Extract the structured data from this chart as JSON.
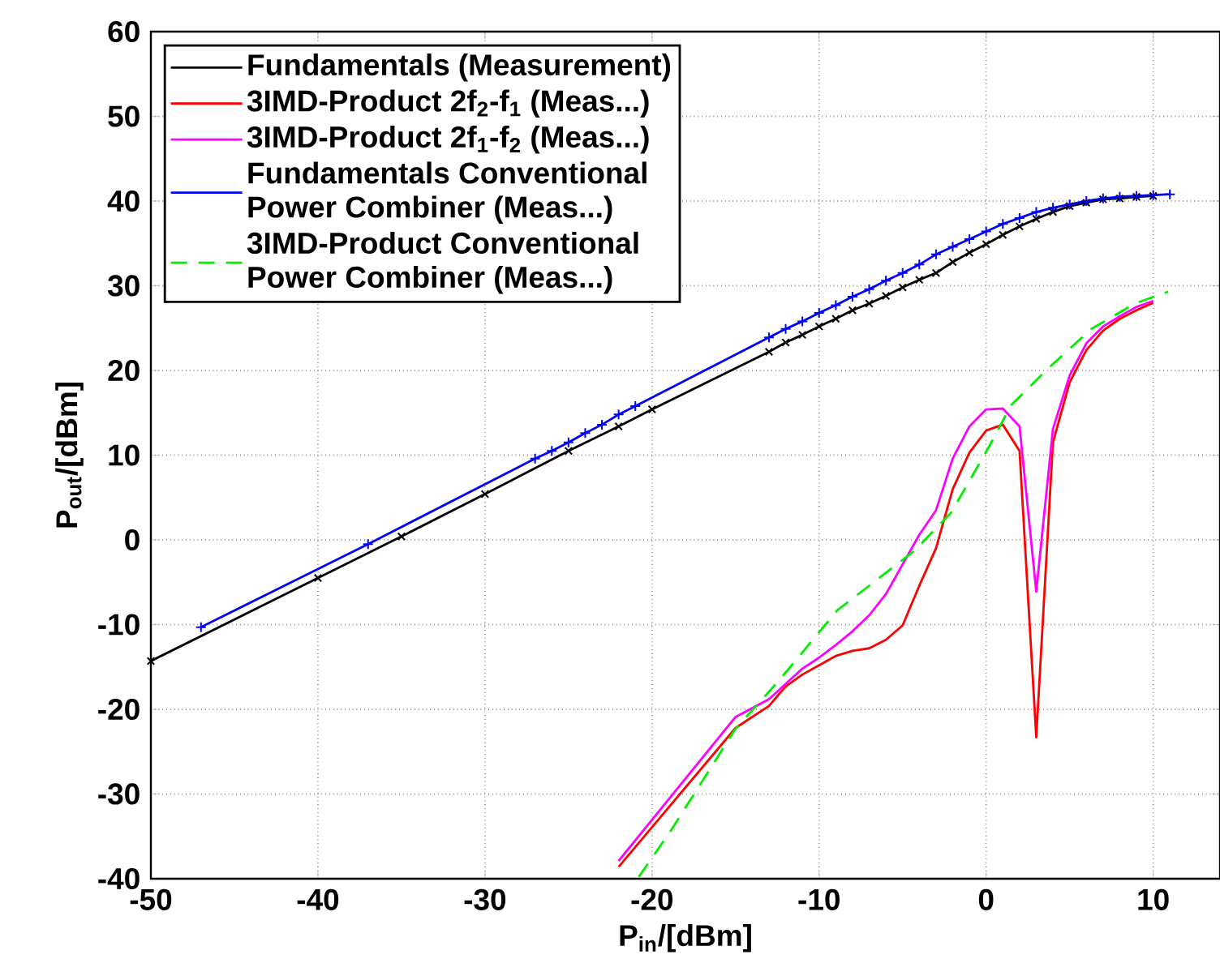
{
  "chart_data": {
    "type": "line",
    "xlabel": "P$_{in}$/[dBm]",
    "ylabel": "P$_{out}$/[dBm]",
    "xlim": [
      -50,
      14
    ],
    "ylim": [
      -40,
      60
    ],
    "xticks": [
      -50,
      -40,
      -30,
      -20,
      -10,
      0,
      10
    ],
    "yticks": [
      -40,
      -30,
      -20,
      -10,
      0,
      10,
      20,
      30,
      40,
      50,
      60
    ],
    "grid": true,
    "legend": "top left",
    "series": [
      {
        "name": "Fundamentals (Measurement)",
        "color": "#000000",
        "marker": "cross",
        "line_style": "solid",
        "x": [
          -50,
          -40,
          -35,
          -30,
          -25,
          -22,
          -20,
          -13,
          -12,
          -11,
          -10,
          -9,
          -8,
          -7,
          -6,
          -5,
          -4,
          -3,
          -2,
          -1,
          0,
          1,
          2,
          3,
          4,
          5,
          6,
          7,
          8,
          9,
          10
        ],
        "values": [
          -14.3,
          -4.5,
          0.4,
          5.4,
          10.5,
          13.4,
          15.4,
          22.2,
          23.3,
          24.2,
          25.2,
          26.1,
          27.1,
          27.9,
          28.8,
          29.8,
          30.7,
          31.5,
          32.8,
          33.9,
          34.9,
          36.0,
          37.0,
          37.9,
          38.7,
          39.4,
          39.8,
          40.2,
          40.3,
          40.5,
          40.6
        ]
      },
      {
        "name": "3IMD-Product 2f$_{2}$-f$_{1}$ (Meas...)",
        "color": "#ff0000",
        "marker": "none",
        "line_style": "solid",
        "x": [
          -22,
          -15,
          -13,
          -12,
          -11,
          -10,
          -9,
          -8,
          -7,
          -6,
          -5,
          -4,
          -3,
          -2,
          -1,
          0,
          1,
          2,
          3,
          4,
          5,
          6,
          7,
          8,
          9,
          10
        ],
        "values": [
          -38.6,
          -22.2,
          -19.6,
          -17.3,
          -15.9,
          -14.8,
          -13.7,
          -13.1,
          -12.8,
          -11.8,
          -10.1,
          -5.4,
          -1.0,
          6.0,
          10.3,
          12.9,
          13.6,
          10.5,
          -23.3,
          11.5,
          18.6,
          22.4,
          24.7,
          26.1,
          27.1,
          28.0
        ]
      },
      {
        "name": "3IMD-Product 2f$_{1}$-f$_{2}$ (Meas...)",
        "color": "#ff00ff",
        "marker": "none",
        "line_style": "solid",
        "x": [
          -22,
          -15,
          -13,
          -11,
          -10,
          -9,
          -8,
          -7,
          -6,
          -5,
          -4,
          -3,
          -2,
          -1,
          0,
          1,
          2,
          3,
          4,
          5,
          6,
          7,
          8,
          9,
          10
        ],
        "values": [
          -37.9,
          -20.9,
          -18.8,
          -15.2,
          -13.9,
          -12.4,
          -10.8,
          -8.9,
          -6.4,
          -2.9,
          0.6,
          3.5,
          9.6,
          13.4,
          15.4,
          15.5,
          13.4,
          -6.1,
          13.1,
          19.4,
          23.2,
          25.2,
          26.4,
          27.5,
          28.2
        ]
      },
      {
        "name": "Fundamentals Conventional Power Combiner (Meas...)",
        "color": "#0000ff",
        "marker": "plus",
        "line_style": "solid",
        "x": [
          -47,
          -37,
          -27,
          -26,
          -25,
          -24,
          -23,
          -22,
          -21,
          -13,
          -12,
          -11,
          -10,
          -9,
          -8,
          -7,
          -6,
          -5,
          -4,
          -3,
          -2,
          -1,
          0,
          1,
          2,
          3,
          4,
          5,
          6,
          7,
          8,
          9,
          10,
          11
        ],
        "values": [
          -10.3,
          -0.5,
          9.6,
          10.5,
          11.5,
          12.6,
          13.6,
          14.8,
          15.8,
          23.9,
          24.9,
          25.8,
          26.8,
          27.7,
          28.7,
          29.6,
          30.6,
          31.5,
          32.5,
          33.7,
          34.6,
          35.5,
          36.4,
          37.3,
          38.0,
          38.7,
          39.2,
          39.6,
          40.0,
          40.3,
          40.5,
          40.6,
          40.7,
          40.8
        ]
      },
      {
        "name": "3IMD-Product Conventional Power Combiner (Meas...)",
        "color": "#00ee00",
        "marker": "none",
        "line_style": "dashed",
        "x": [
          -20.8,
          -18.9,
          -15,
          -12.4,
          -8.9,
          -4.3,
          -2.1,
          0.2,
          1.5,
          3.8,
          6.3,
          8.9,
          10.9
        ],
        "values": [
          -39.8,
          -34.4,
          -22.3,
          -16.6,
          -8.3,
          -1.3,
          3.2,
          11.1,
          15.9,
          20.4,
          24.9,
          27.9,
          29.3
        ]
      }
    ]
  }
}
